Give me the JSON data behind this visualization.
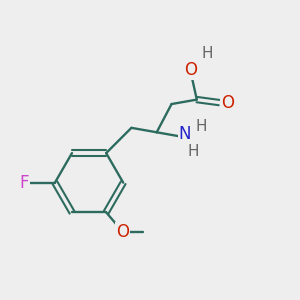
{
  "bg_color": "#eeeeee",
  "bond_color": "#2d6b5e",
  "atom_colors": {
    "O": "#cc2200",
    "N": "#2222cc",
    "F": "#cc44cc",
    "H": "#666666"
  },
  "figsize": [
    3.0,
    3.0
  ],
  "dpi": 100
}
